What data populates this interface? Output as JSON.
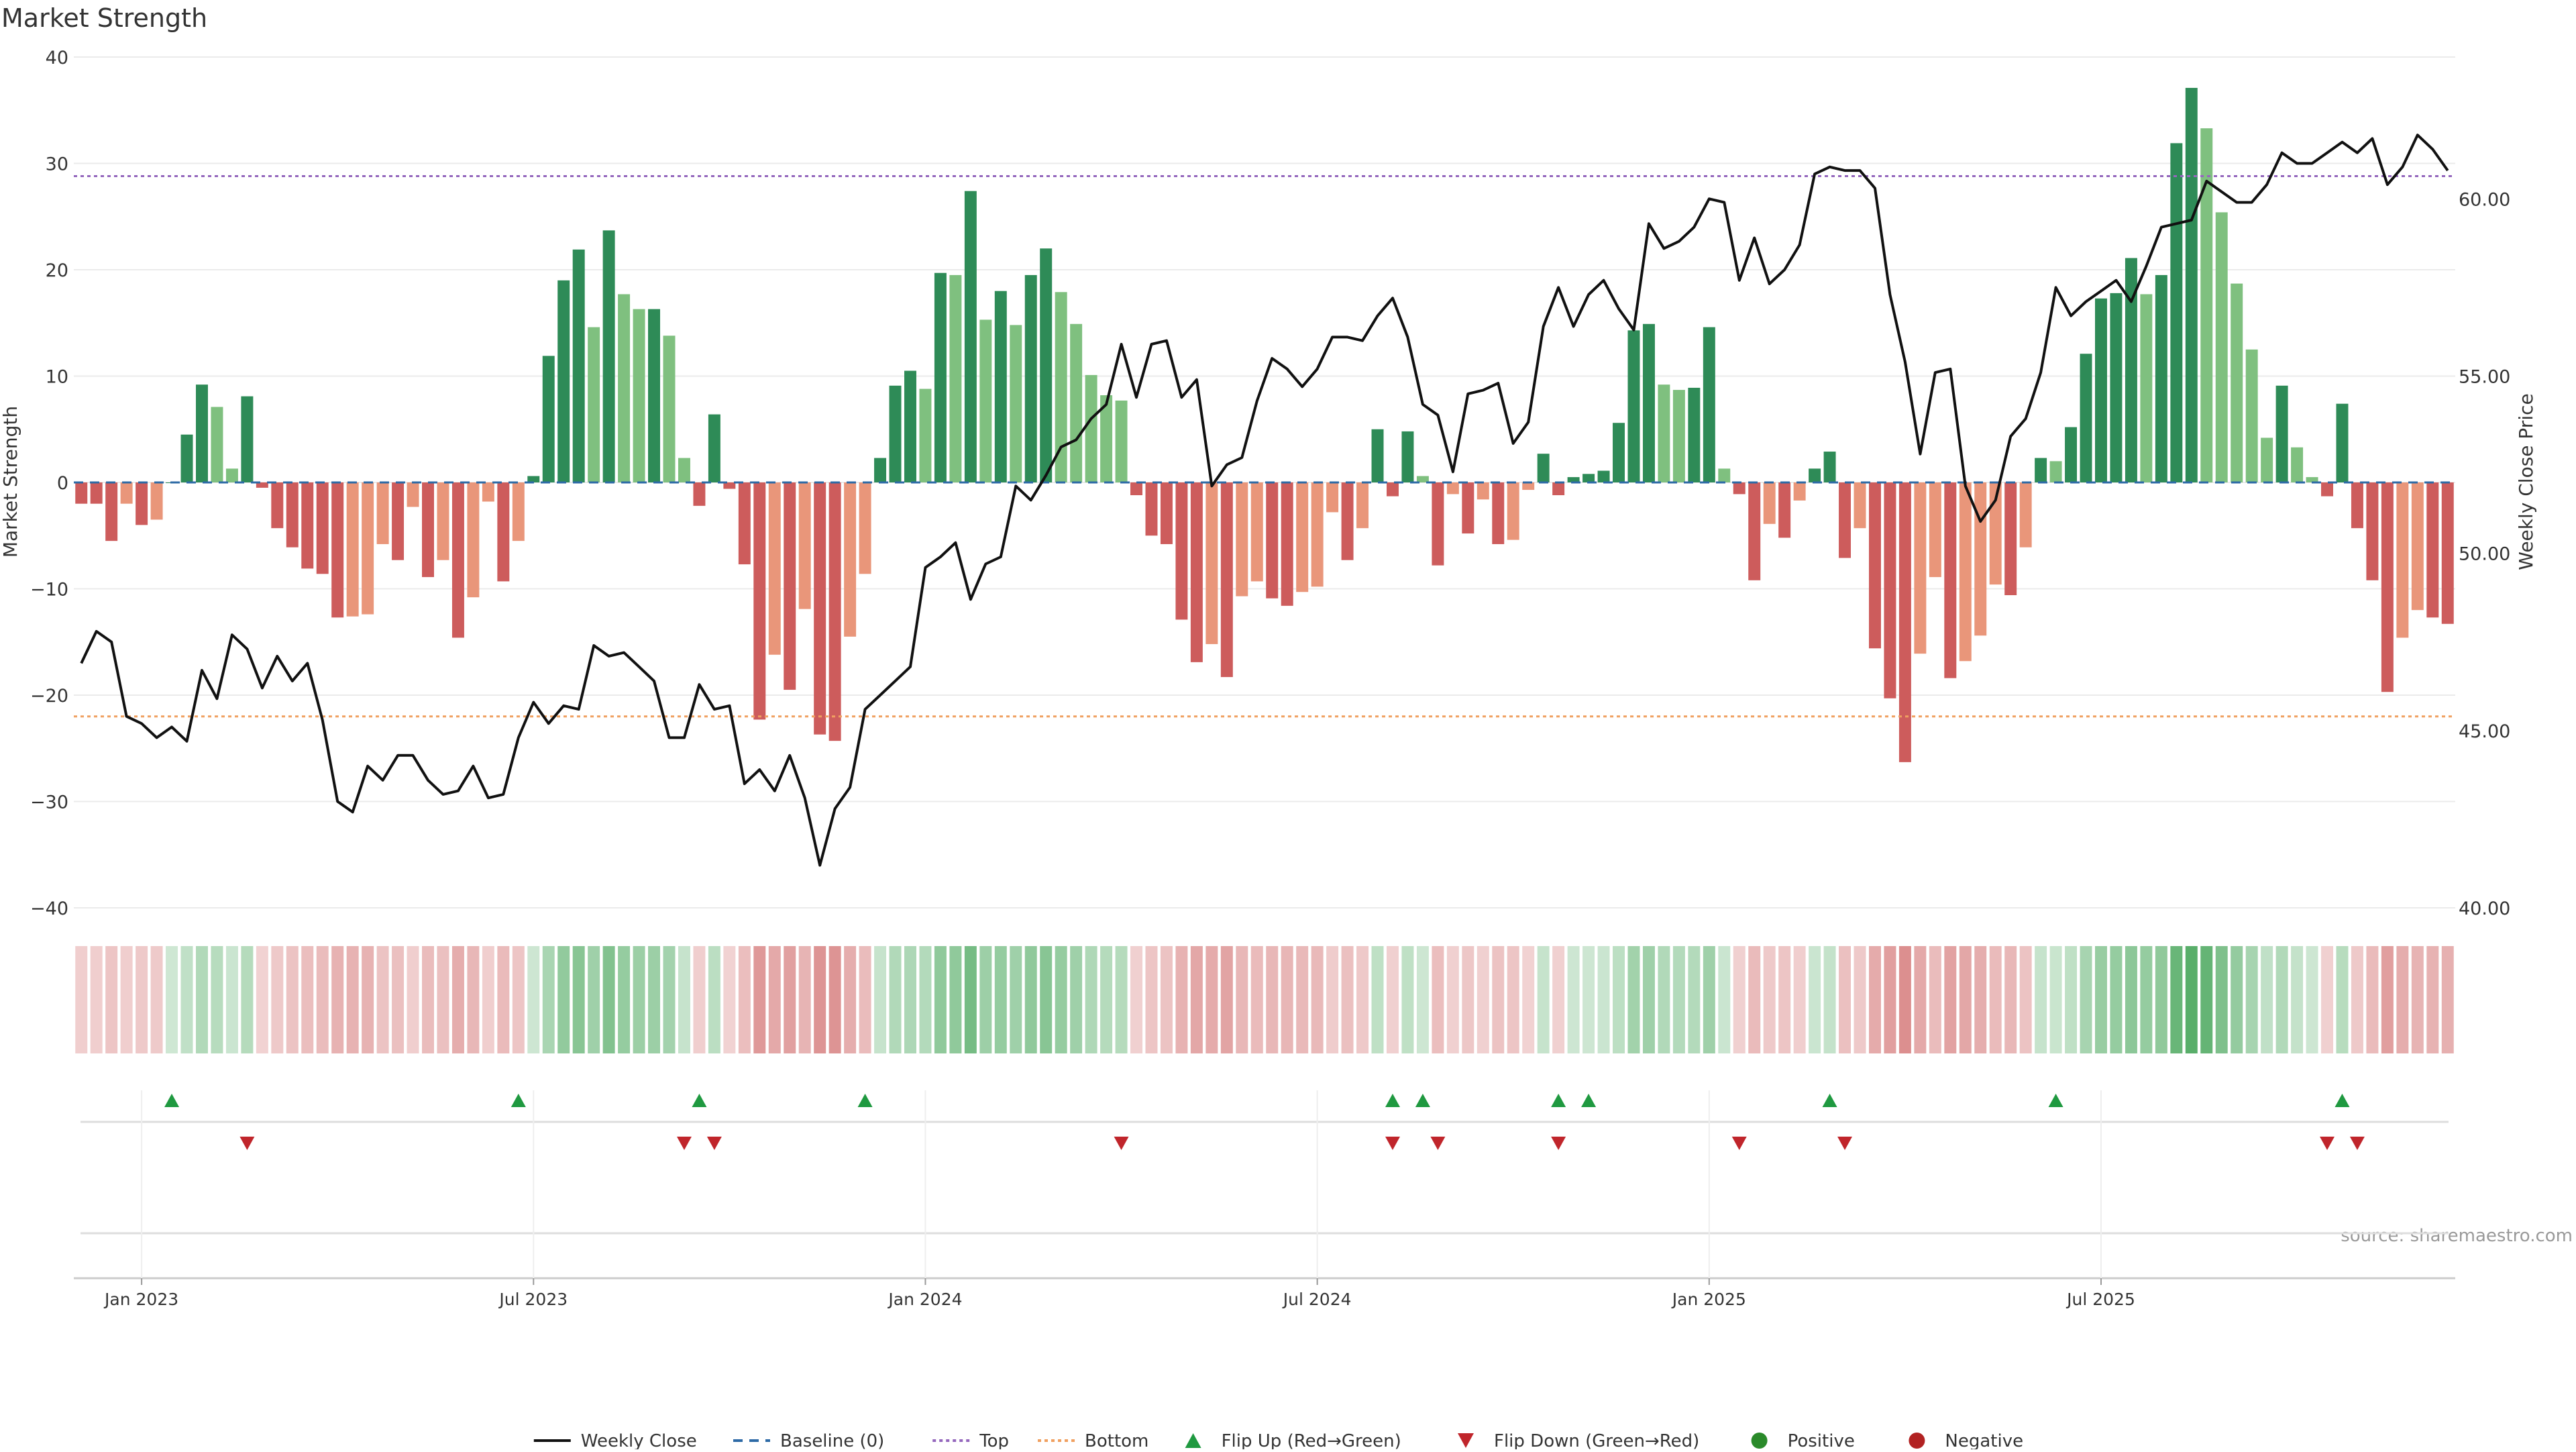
{
  "chart_data": {
    "type": "bar",
    "title": "Market Strength",
    "ylabel": "Market Strength",
    "y2label": "Weekly Close Price",
    "ylim": [
      -40,
      40
    ],
    "y2lim": [
      40,
      64
    ],
    "y_ticks": [
      -40,
      -30,
      -20,
      -10,
      0,
      10,
      20,
      30,
      40
    ],
    "y_tick_labels": [
      "−40",
      "−30",
      "−20",
      "−10",
      "0",
      "10",
      "20",
      "30",
      "40"
    ],
    "y2_ticks": [
      40,
      45,
      50,
      55,
      60
    ],
    "y2_tick_labels": [
      "40.00",
      "45.00",
      "50.00",
      "55.00",
      "60.00"
    ],
    "x_ticks": [
      4,
      30,
      56,
      82,
      108,
      134
    ],
    "x_tick_labels": [
      "Jan 2023",
      "Jul 2023",
      "Jan 2024",
      "Jul 2024",
      "Jan 2025",
      "Jul 2025"
    ],
    "top_threshold": 28.8,
    "bottom_threshold": -22,
    "grid": true,
    "legend_position": "bottom",
    "source": "source: sharemaestro.com",
    "strength": [
      -2,
      -2,
      -5.5,
      -2,
      -4,
      -3.5,
      0,
      4.5,
      9.2,
      7.1,
      1.3,
      8.1,
      -0.5,
      -4.3,
      -6.1,
      -8.1,
      -8.6,
      -12.7,
      -12.6,
      -12.4,
      -5.8,
      -7.3,
      -2.3,
      -8.9,
      -7.3,
      -14.6,
      -10.8,
      -1.8,
      -9.3,
      -5.5,
      0.6,
      11.9,
      19,
      21.9,
      14.6,
      23.7,
      17.7,
      16.3,
      16.3,
      13.8,
      2.3,
      -2.2,
      6.4,
      -0.6,
      -7.7,
      -22.3,
      -16.2,
      -19.5,
      -11.9,
      -23.7,
      -24.3,
      -14.5,
      -8.6,
      2.3,
      9.1,
      10.5,
      8.8,
      19.7,
      19.5,
      27.4,
      15.3,
      18,
      14.8,
      19.5,
      22,
      17.9,
      14.9,
      10.1,
      8.2,
      7.7,
      -1.2,
      -5,
      -5.8,
      -12.9,
      -16.9,
      -15.2,
      -18.3,
      -10.7,
      -9.3,
      -10.9,
      -11.6,
      -10.3,
      -9.8,
      -2.8,
      -7.3,
      -4.3,
      5,
      -1.3,
      4.8,
      0.6,
      -7.8,
      -1.1,
      -4.8,
      -1.6,
      -5.8,
      -5.4,
      -0.7,
      2.7,
      -1.2,
      0.5,
      0.8,
      1.1,
      5.6,
      14.3,
      14.9,
      9.2,
      8.7,
      8.9,
      14.6,
      1.3,
      -1.1,
      -9.2,
      -3.9,
      -5.2,
      -1.7,
      1.3,
      2.9,
      -7.1,
      -4.3,
      -15.6,
      -20.3,
      -26.3,
      -16.1,
      -8.9,
      -18.4,
      -16.8,
      -14.4,
      -9.6,
      -10.6,
      -6.1,
      2.3,
      2,
      5.2,
      12.1,
      17.3,
      17.8,
      21.1,
      17.7,
      19.5,
      31.9,
      37.1,
      33.3,
      25.4,
      18.7,
      12.5,
      4.2,
      9.1,
      3.3,
      0.5,
      -1.3,
      7.4,
      -4.3,
      -9.2,
      -19.7,
      -14.6,
      -12,
      -12.7,
      -13.3
    ],
    "series": [
      {
        "name": "Weekly Close",
        "values": [
          46.9,
          47.8,
          47.5,
          45.4,
          45.2,
          44.8,
          45.1,
          44.7,
          46.7,
          45.9,
          47.7,
          47.3,
          46.2,
          47.1,
          46.4,
          46.9,
          45.3,
          43.0,
          42.7,
          44.0,
          43.6,
          44.3,
          44.3,
          43.6,
          43.2,
          43.3,
          44.0,
          43.1,
          43.2,
          44.8,
          45.8,
          45.2,
          45.7,
          45.6,
          47.4,
          47.1,
          47.2,
          46.8,
          46.4,
          44.8,
          44.8,
          46.3,
          45.6,
          45.7,
          43.5,
          43.9,
          43.3,
          44.3,
          43.1,
          41.2,
          42.8,
          43.4,
          45.6,
          46.0,
          46.4,
          46.8,
          49.6,
          49.9,
          50.3,
          48.7,
          49.7,
          49.9,
          51.9,
          51.5,
          52.2,
          53.0,
          53.2,
          53.8,
          54.2,
          55.9,
          54.4,
          55.9,
          56.0,
          54.4,
          54.9,
          51.9,
          52.5,
          52.7,
          54.3,
          55.5,
          55.2,
          54.7,
          55.2,
          56.1,
          56.1,
          56.0,
          56.7,
          57.2,
          56.1,
          54.2,
          53.9,
          52.3,
          54.5,
          54.6,
          54.8,
          53.1,
          53.7,
          56.4,
          57.5,
          56.4,
          57.3,
          57.7,
          56.9,
          56.3,
          59.3,
          58.6,
          58.8,
          59.2,
          60.0,
          59.9,
          57.7,
          58.9,
          57.6,
          58.0,
          58.7,
          60.7,
          60.9,
          60.8,
          60.8,
          60.3,
          57.3,
          55.4,
          52.8,
          55.1,
          55.2,
          51.9,
          50.9,
          51.5,
          53.3,
          53.8,
          55.1,
          57.5,
          56.7,
          57.1,
          57.4,
          57.7,
          57.1,
          58.1,
          59.2,
          59.3,
          59.4,
          60.5,
          60.2,
          59.9,
          59.9,
          60.4,
          61.3,
          61.0,
          61.0,
          61.3,
          61.6,
          61.3,
          61.7,
          60.4,
          60.9,
          61.8,
          61.4,
          60.8
        ]
      },
      {
        "name": "Baseline (0)",
        "values": [
          0
        ]
      },
      {
        "name": "Top",
        "values": [
          28.8
        ]
      },
      {
        "name": "Bottom",
        "values": [
          -22
        ]
      }
    ],
    "flip_up_indices": [
      6,
      29,
      41,
      52,
      87,
      89,
      98,
      100,
      116,
      131,
      150
    ],
    "flip_down_indices": [
      11,
      40,
      42,
      69,
      87,
      90,
      98,
      110,
      117,
      149,
      151
    ],
    "legend": [
      {
        "label": "Weekly Close",
        "kind": "line",
        "color": "#111111"
      },
      {
        "label": "Baseline (0)",
        "kind": "dash",
        "color": "#2d6aa6"
      },
      {
        "label": "Top",
        "kind": "dot",
        "color": "#9467bd"
      },
      {
        "label": "Bottom",
        "kind": "dot",
        "color": "#f0a060"
      },
      {
        "label": "Flip Up (Red→Green)",
        "kind": "tri-up",
        "color": "#1f9940"
      },
      {
        "label": "Flip Down (Green→Red)",
        "kind": "tri-down",
        "color": "#c0252b"
      },
      {
        "label": "Positive",
        "kind": "circle",
        "color": "#2a8a2a"
      },
      {
        "label": "Negative",
        "kind": "circle",
        "color": "#b22222"
      }
    ],
    "colors": {
      "pos_strong": "#2e8b57",
      "pos_light": "#7fc07f",
      "neg_strong": "#cd5c5c",
      "neg_light": "#e9967a",
      "top_line": "#9467bd",
      "bottom_line": "#f0a060",
      "baseline": "#2d6aa6",
      "price_line": "#111111",
      "grid": "#ebebeb"
    }
  }
}
